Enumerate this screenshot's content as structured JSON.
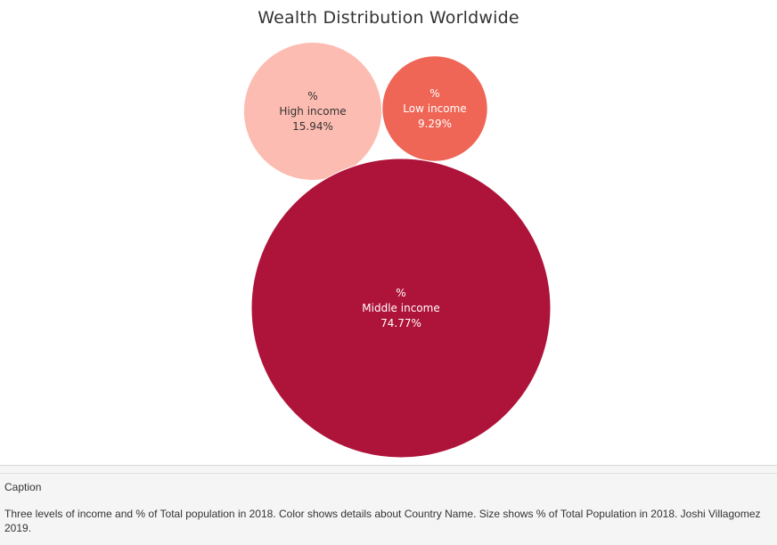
{
  "chart_data": {
    "type": "bubble",
    "title": "Wealth Distribution Worldwide",
    "measure_label": "%",
    "series": [
      {
        "name": "High income",
        "value": 15.94,
        "label": "15.94%",
        "color": "#fdbcb1",
        "text_color": "#333333"
      },
      {
        "name": "Low income",
        "value": 9.29,
        "label": "9.29%",
        "color": "#ef6656",
        "text_color": "#ffffff"
      },
      {
        "name": "Middle income",
        "value": 74.77,
        "label": "74.77%",
        "color": "#ae1339",
        "text_color": "#ffffff"
      }
    ]
  },
  "caption": {
    "heading": "Caption",
    "text": "Three levels of income and % of Total population in 2018.  Color shows details about Country Name.  Size shows % of Total Population in 2018.  Joshi Villagomez 2019."
  }
}
